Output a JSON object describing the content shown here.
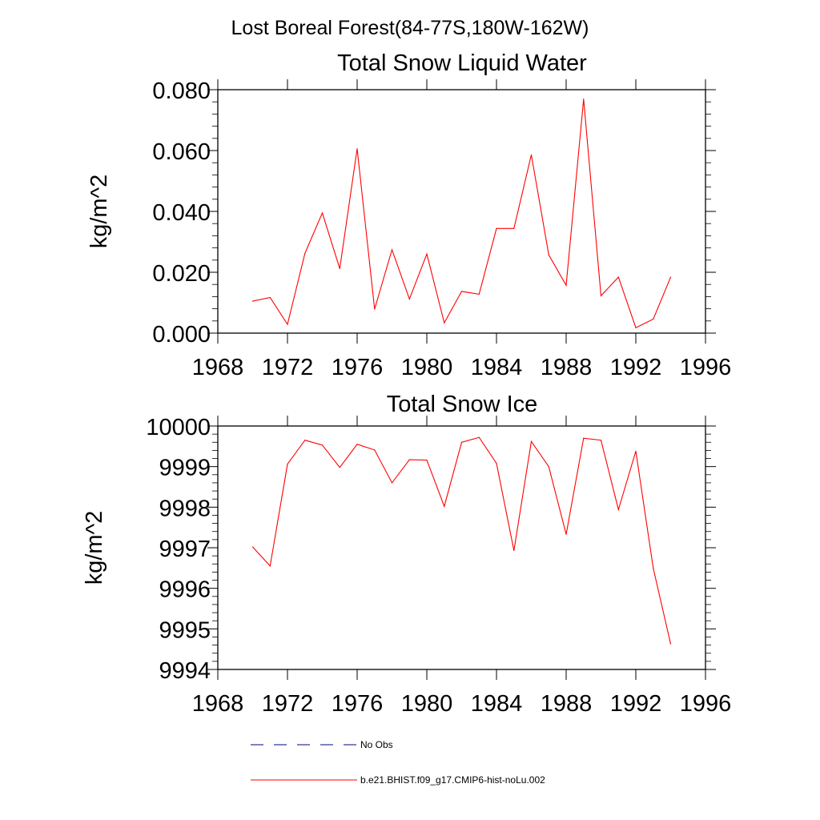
{
  "figure": {
    "title": "Lost Boreal Forest(84-77S,180W-162W)"
  },
  "colors": {
    "series": "#ff0000",
    "obs": "#000080",
    "axis": "#000000"
  },
  "chart_data": [
    {
      "type": "line",
      "title": "Total Snow Liquid Water",
      "xlabel": "",
      "ylabel": "kg/m^2",
      "xlim": [
        1968,
        1996
      ],
      "ylim": [
        0.0,
        0.08
      ],
      "xticks": [
        "1968",
        "1972",
        "1976",
        "1980",
        "1984",
        "1988",
        "1992",
        "1996"
      ],
      "yticks": [
        "0.000",
        "0.020",
        "0.040",
        "0.060",
        "0.080"
      ],
      "grid": false,
      "series": [
        {
          "x": [
            1970,
            1971,
            1972,
            1973,
            1974,
            1975,
            1976,
            1977,
            1978,
            1979,
            1980,
            1981,
            1982,
            1983,
            1984,
            1985,
            1986,
            1987,
            1988,
            1989,
            1990,
            1991,
            1992,
            1993,
            1994
          ],
          "values": [
            0.0105,
            0.0117,
            0.0029,
            0.0262,
            0.0395,
            0.0212,
            0.0606,
            0.0079,
            0.0274,
            0.0112,
            0.026,
            0.0034,
            0.0137,
            0.0128,
            0.0344,
            0.0344,
            0.0586,
            0.0257,
            0.0157,
            0.0769,
            0.0123,
            0.0184,
            0.0018,
            0.0046,
            0.0184
          ]
        }
      ]
    },
    {
      "type": "line",
      "title": "Total Snow Ice",
      "xlabel": "",
      "ylabel": "kg/m^2",
      "xlim": [
        1968,
        1996
      ],
      "ylim": [
        9994,
        10000
      ],
      "xticks": [
        "1968",
        "1972",
        "1976",
        "1980",
        "1984",
        "1988",
        "1992",
        "1996"
      ],
      "yticks": [
        "9994",
        "9995",
        "9996",
        "9997",
        "9998",
        "9999",
        "10000"
      ],
      "grid": false,
      "series": [
        {
          "x": [
            1970,
            1971,
            1972,
            1973,
            1974,
            1975,
            1976,
            1977,
            1978,
            1979,
            1980,
            1981,
            1982,
            1983,
            1984,
            1985,
            1986,
            1987,
            1988,
            1989,
            1990,
            1991,
            1992,
            1993,
            1994
          ],
          "values": [
            9997.02,
            9996.55,
            9999.06,
            9999.65,
            9999.53,
            9998.98,
            9999.55,
            9999.41,
            9998.6,
            9999.17,
            9999.16,
            9998.02,
            9999.6,
            9999.72,
            9999.08,
            9996.93,
            9999.62,
            9999.0,
            9997.33,
            9999.7,
            9999.65,
            9997.94,
            9999.38,
            9996.49,
            9994.63
          ]
        }
      ]
    }
  ],
  "legend": {
    "items": [
      {
        "label": "No Obs",
        "style": "dashed"
      },
      {
        "label": "b.e21.BHIST.f09_g17.CMIP6-hist-noLu.002",
        "style": "solid"
      }
    ]
  }
}
